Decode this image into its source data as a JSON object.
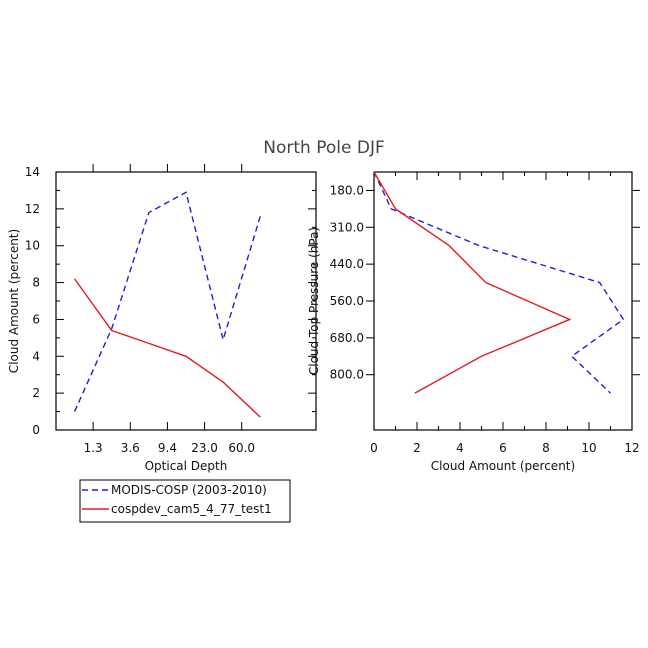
{
  "figure": {
    "title": "North Pole DJF",
    "colors": {
      "modis": "#1f1fd6",
      "model": "#e01e1e",
      "axis": "#000000"
    }
  },
  "legend": {
    "entries": [
      {
        "label": "MODIS-COSP (2003-2010)",
        "color": "#1f1fd6",
        "style": "dashed"
      },
      {
        "label": "cospdev_cam5_4_77_test1",
        "color": "#e01e1e",
        "style": "solid"
      }
    ]
  },
  "chart_data": [
    {
      "type": "line",
      "title": "",
      "xlabel": "Optical Depth",
      "ylabel": "Cloud Amount (percent)",
      "x_tick_labels": [
        "1.3",
        "3.6",
        "9.4",
        "23.0",
        "60.0"
      ],
      "x_bins": 7,
      "ylim": [
        0,
        14
      ],
      "y_ticks": [
        0,
        2,
        4,
        6,
        8,
        10,
        12,
        14
      ],
      "series": [
        {
          "name": "MODIS-COSP (2003-2010)",
          "x_index": [
            0,
            1,
            2,
            3,
            4,
            5
          ],
          "values": [
            1.0,
            5.5,
            11.8,
            12.9,
            4.9,
            11.6
          ]
        },
        {
          "name": "cospdev_cam5_4_77_test1",
          "x_index": [
            0,
            1,
            2,
            3,
            4,
            5
          ],
          "values": [
            8.2,
            5.4,
            4.7,
            4.0,
            2.6,
            0.7
          ]
        }
      ]
    },
    {
      "type": "line",
      "title": "",
      "xlabel": "Cloud Amount (percent)",
      "ylabel": "Cloud Top Pressure (hPa)",
      "xlim": [
        0,
        12
      ],
      "x_ticks": [
        0,
        2,
        4,
        6,
        8,
        10,
        12
      ],
      "y_tick_labels": [
        "180.0",
        "310.0",
        "440.0",
        "560.0",
        "680.0",
        "800.0"
      ],
      "y_bins": 7,
      "series": [
        {
          "name": "MODIS-COSP (2003-2010)",
          "values": [
            0.0,
            0.8,
            4.9,
            10.5,
            11.6,
            9.2,
            11.0
          ],
          "y_index": [
            0,
            1,
            2,
            3,
            4,
            5,
            6
          ]
        },
        {
          "name": "cospdev_cam5_4_77_test1",
          "values": [
            0.0,
            1.0,
            3.5,
            5.2,
            9.1,
            5.0,
            1.9
          ],
          "y_index": [
            0,
            1,
            2,
            3,
            4,
            5,
            6
          ]
        }
      ]
    }
  ]
}
